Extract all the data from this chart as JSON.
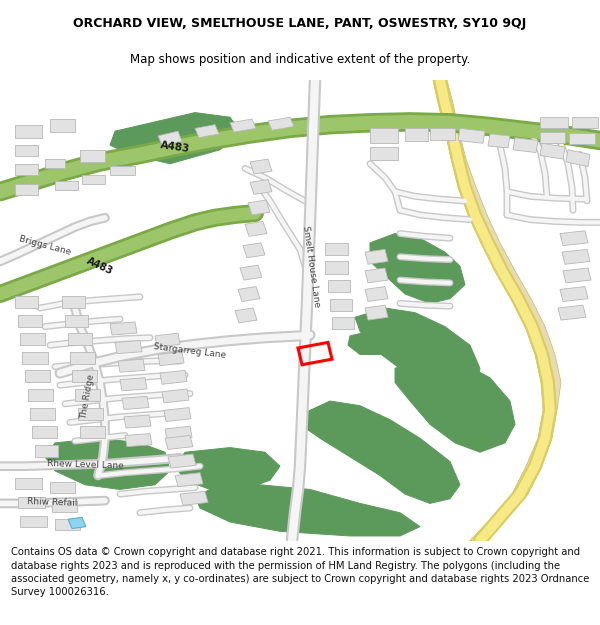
{
  "title": "ORCHARD VIEW, SMELTHOUSE LANE, PANT, OSWESTRY, SY10 9QJ",
  "subtitle": "Map shows position and indicative extent of the property.",
  "footer": "Contains OS data © Crown copyright and database right 2021. This information is subject to Crown copyright and database rights 2023 and is reproduced with the permission of HM Land Registry. The polygons (including the associated geometry, namely x, y co-ordinates) are subject to Crown copyright and database rights 2023 Ordnance Survey 100026316.",
  "bg_color": "#ffffff",
  "map_bg": "#ffffff",
  "green_color": "#5b9a5b",
  "a_road_fill": "#9dc66b",
  "a_road_edge": "#7aaa47",
  "white_road_fill": "#f5f5f5",
  "white_road_edge": "#c8c8c8",
  "yellow_road_fill": "#f7e986",
  "yellow_road_edge": "#d9cc60",
  "highlight_color": "#ff0000",
  "water_color": "#8fd4ef",
  "building_fill": "#e2e2e2",
  "building_edge": "#b8b8b8",
  "tan_fill": "#e8dbb0",
  "tan_edge": "#c8b870",
  "title_fs": 9,
  "subtitle_fs": 8.5,
  "footer_fs": 7.2,
  "road_label_fs": 6.5
}
